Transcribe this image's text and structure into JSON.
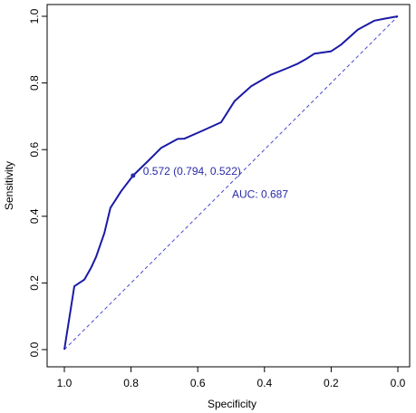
{
  "chart_data": {
    "type": "line",
    "title": "",
    "xlabel": "Specificity",
    "ylabel": "Sensitivity",
    "xlim": [
      1.0,
      0.0
    ],
    "ylim": [
      0.0,
      1.0
    ],
    "x_reversed": true,
    "grid": false,
    "x_ticks": [
      "1.0",
      "0.8",
      "0.6",
      "0.4",
      "0.2",
      "0.0"
    ],
    "y_ticks": [
      "0.0",
      "0.2",
      "0.4",
      "0.6",
      "0.8",
      "1.0"
    ],
    "series": [
      {
        "color": "#1a1aa6",
        "x": [
          1.0,
          0.97,
          0.94,
          0.92,
          0.905,
          0.88,
          0.862,
          0.83,
          0.794,
          0.75,
          0.71,
          0.66,
          0.64,
          0.59,
          0.53,
          0.49,
          0.44,
          0.38,
          0.33,
          0.3,
          0.275,
          0.25,
          0.2,
          0.17,
          0.12,
          0.07,
          0.04,
          0.0
        ],
        "y": [
          0.0,
          0.19,
          0.21,
          0.245,
          0.278,
          0.35,
          0.425,
          0.475,
          0.522,
          0.565,
          0.605,
          0.632,
          0.633,
          0.655,
          0.682,
          0.745,
          0.79,
          0.825,
          0.845,
          0.858,
          0.872,
          0.888,
          0.895,
          0.915,
          0.96,
          0.987,
          0.993,
          1.0
        ]
      }
    ],
    "reference_line": {
      "from": [
        1.0,
        0.0
      ],
      "to": [
        0.0,
        1.0
      ],
      "style": "dashed",
      "color": "#4a4acf"
    },
    "highlight_point": {
      "x": 0.794,
      "y": 0.522,
      "label": "0.572 (0.794, 0.522)",
      "color": "#2a2aa8"
    },
    "auc_label": {
      "text": "AUC: 0.687",
      "color": "#2a2aa8"
    }
  }
}
